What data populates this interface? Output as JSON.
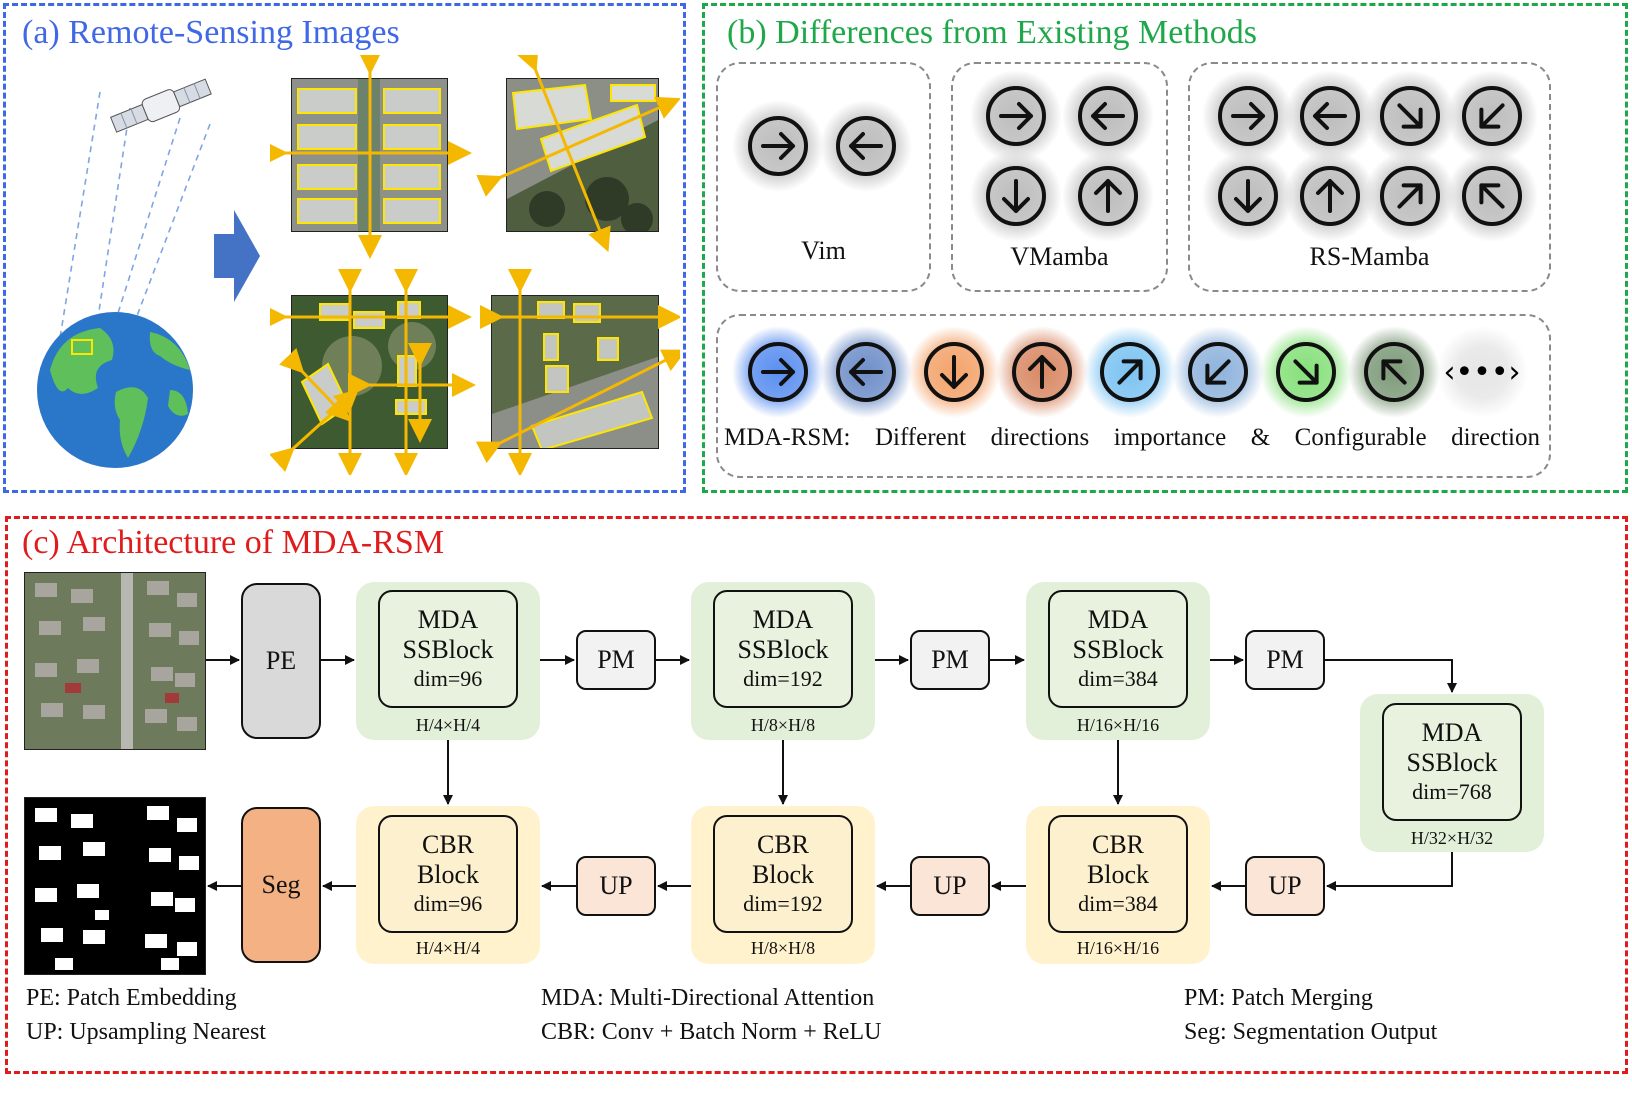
{
  "panel_a": {
    "title": "(a) Remote-Sensing Images"
  },
  "panel_b": {
    "title": "(b) Differences from Existing Methods",
    "methods": [
      {
        "label": "Vim",
        "icons": [
          "arrow-right",
          "arrow-left"
        ]
      },
      {
        "label": "VMamba",
        "icons": [
          "arrow-right",
          "arrow-left",
          "arrow-down",
          "arrow-up"
        ]
      },
      {
        "label": "RS-Mamba",
        "icons": [
          "arrow-right",
          "arrow-left",
          "arrow-down-right",
          "arrow-down-left",
          "arrow-down",
          "arrow-up",
          "arrow-up-right",
          "arrow-up-left"
        ]
      }
    ],
    "mda": {
      "icons": [
        {
          "dir": "arrow-right",
          "glow": "#5b8ff0"
        },
        {
          "dir": "arrow-left",
          "glow": "#6f8fc9"
        },
        {
          "dir": "arrow-down",
          "glow": "#f3a36b"
        },
        {
          "dir": "arrow-up",
          "glow": "#d98a66"
        },
        {
          "dir": "arrow-up-right",
          "glow": "#7cc3f2"
        },
        {
          "dir": "arrow-down-left",
          "glow": "#8fb3dc"
        },
        {
          "dir": "arrow-down-right",
          "glow": "#86e07a"
        },
        {
          "dir": "arrow-up-left",
          "glow": "#7e9b7a"
        },
        {
          "dir": "dots-bidirectional",
          "glow": "#e6e6e6"
        }
      ],
      "caption": {
        "prefix": "MDA-RSM:",
        "words": [
          "Different",
          "directions",
          "importance",
          "&",
          "Configurable",
          "direction"
        ]
      }
    }
  },
  "panel_c": {
    "title": "(c) Architecture of MDA-RSM",
    "pe_label": "PE",
    "seg_label": "Seg",
    "pm_label": "PM",
    "up_label": "UP",
    "encoder": [
      {
        "l1": "MDA",
        "l2": "SSBlock",
        "dim": "dim=96",
        "res": "H/4×H/4"
      },
      {
        "l1": "MDA",
        "l2": "SSBlock",
        "dim": "dim=192",
        "res": "H/8×H/8"
      },
      {
        "l1": "MDA",
        "l2": "SSBlock",
        "dim": "dim=384",
        "res": "H/16×H/16"
      },
      {
        "l1": "MDA",
        "l2": "SSBlock",
        "dim": "dim=768",
        "res": "H/32×H/32"
      }
    ],
    "decoder": [
      {
        "l1": "CBR",
        "l2": "Block",
        "dim": "dim=96",
        "res": "H/4×H/4"
      },
      {
        "l1": "CBR",
        "l2": "Block",
        "dim": "dim=192",
        "res": "H/8×H/8"
      },
      {
        "l1": "CBR",
        "l2": "Block",
        "dim": "dim=384",
        "res": "H/16×H/16"
      }
    ],
    "legend": [
      "PE: Patch Embedding",
      "UP: Upsampling Nearest",
      "MDA: Multi-Directional Attention",
      "CBR: Conv + Batch Norm + ReLU",
      "PM: Patch Merging",
      "Seg: Segmentation Output"
    ]
  },
  "colors": {
    "panel_a_border": "#3f67e6",
    "panel_b_border": "#1ea84a",
    "panel_c_border": "#e01b1b",
    "encoder_bg": "#e2efd9",
    "encoder_inner": "#e8f2de",
    "decoder_bg": "#fff2cc",
    "decoder_inner": "#fdf0cf",
    "pe_fill": "#d9d9d9",
    "seg_fill": "#f4b183",
    "pm_fill": "#f2f2f2",
    "up_fill": "#fbe5d6",
    "scan_arrow": "#f5b800"
  }
}
